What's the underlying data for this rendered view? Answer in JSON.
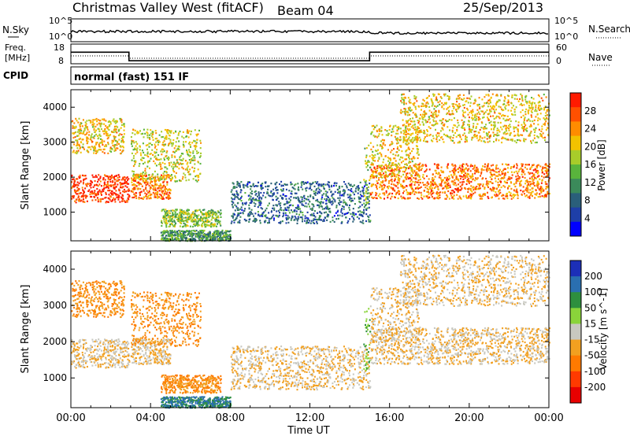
{
  "header": {
    "station": "Christmas Valley West (fitACF)",
    "beam": "Beam 04",
    "date": "25/Sep/2013"
  },
  "panels": {
    "nsky_label": "N.Sky",
    "nsearch_label": "N.Search",
    "noise_ticks_left": [
      "10^5",
      "10^0"
    ],
    "noise_ticks_right": [
      "10^5",
      "10^0"
    ],
    "freq_label": "Freq.",
    "freq_unit": "[MHz]",
    "freq_ticks": [
      "18",
      "8"
    ],
    "nave_label": "Nave",
    "nave_ticks": [
      "60",
      "0"
    ],
    "cpid_label": "CPID",
    "cpid_text": "normal (fast) 151 IF"
  },
  "axes": {
    "ylabel": "Slant Range [km]",
    "xlabel": "Time UT",
    "yticks": [
      "1000",
      "2000",
      "3000",
      "4000"
    ],
    "xticks": [
      "00:00",
      "04:00",
      "08:00",
      "12:00",
      "16:00",
      "20:00",
      "00:00"
    ]
  },
  "colorbars": {
    "power": {
      "label": "Power [dB]",
      "ticks": [
        "4",
        "8",
        "12",
        "16",
        "20",
        "24",
        "28"
      ],
      "colors": [
        "#0000ff",
        "#1e3fa8",
        "#2a5f7a",
        "#3b8a5a",
        "#59b43c",
        "#a8cc2a",
        "#f2c200",
        "#ff8c00",
        "#ff5000",
        "#ff1a00"
      ]
    },
    "velocity": {
      "label": "Velocity [m s^-1]",
      "ticks": [
        "200",
        "100",
        "50",
        "15",
        "-15",
        "-50",
        "-100",
        "-200"
      ],
      "colors": [
        "#1c2fb8",
        "#2a6fb0",
        "#2e8f3e",
        "#8ad43a",
        "#c8c8c0",
        "#f2a020",
        "#ff7a00",
        "#ff3a00",
        "#e80000"
      ]
    }
  },
  "chart_data": {
    "type": "heatmap",
    "title": "Christmas Valley West (fitACF)",
    "xlabel": "Time UT",
    "ylabel": "Slant Range [km]",
    "xlim": [
      "00:00",
      "24:00"
    ],
    "ylim": [
      180,
      4500
    ],
    "frequency_steps": [
      {
        "from": "00:00",
        "to": "02:55",
        "freq_mhz": 15.0
      },
      {
        "from": "02:55",
        "to": "15:00",
        "freq_mhz": 9.8
      },
      {
        "from": "15:00",
        "to": "24:00",
        "freq_mhz": 15.0
      }
    ],
    "echo_regions": [
      {
        "time": [
          "00:00",
          "02:55"
        ],
        "range_km": [
          1300,
          2100
        ],
        "power_db": 28,
        "velocity": -15
      },
      {
        "time": [
          "00:00",
          "02:40"
        ],
        "range_km": [
          2700,
          3700
        ],
        "power_db": 20,
        "velocity": -50
      },
      {
        "time": [
          "03:00",
          "05:00"
        ],
        "range_km": [
          1400,
          2100
        ],
        "power_db": 24,
        "velocity": -15
      },
      {
        "time": [
          "03:00",
          "06:30"
        ],
        "range_km": [
          1900,
          3400
        ],
        "power_db": 18,
        "velocity": -50
      },
      {
        "time": [
          "04:30",
          "07:30"
        ],
        "range_km": [
          600,
          1100
        ],
        "power_db": 16,
        "velocity": -50
      },
      {
        "time": [
          "04:30",
          "08:00"
        ],
        "range_km": [
          200,
          500
        ],
        "power_db": 12,
        "velocity": 100
      },
      {
        "time": [
          "08:00",
          "15:00"
        ],
        "range_km": [
          700,
          1900
        ],
        "power_db": 8,
        "velocity": -15
      },
      {
        "time": [
          "14:40",
          "15:00"
        ],
        "range_km": [
          1200,
          3000
        ],
        "power_db": 16,
        "velocity": 50
      },
      {
        "time": [
          "15:00",
          "24:00"
        ],
        "range_km": [
          1400,
          2400
        ],
        "power_db": 24,
        "velocity": -15
      },
      {
        "time": [
          "15:00",
          "17:30"
        ],
        "range_km": [
          2000,
          3500
        ],
        "power_db": 20,
        "velocity": -15
      },
      {
        "time": [
          "16:30",
          "24:00"
        ],
        "range_km": [
          3000,
          4400
        ],
        "power_db": 20,
        "velocity": -15
      }
    ]
  }
}
